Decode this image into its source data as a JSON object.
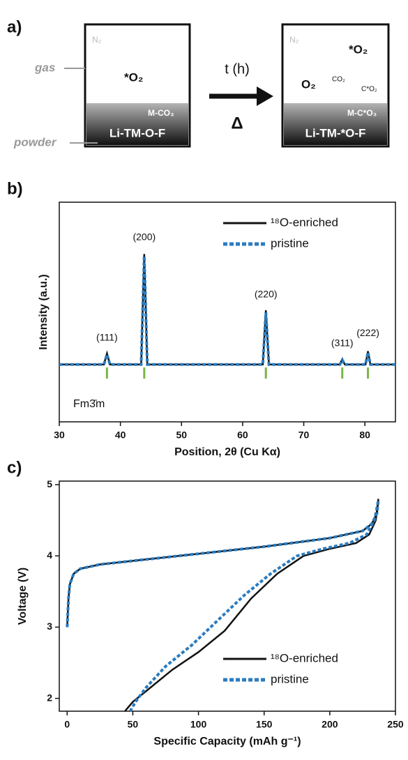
{
  "diagram": {
    "label": "a)",
    "gas": "gas",
    "powder": "powder",
    "left": {
      "atmosphere": "N₂",
      "gas": "*O₂",
      "carbonate": "M-CO₃",
      "oxide": "Li-TM-O-F"
    },
    "arrow_top": "t (h)",
    "arrow_bottom": "Δ",
    "right": {
      "atmosphere": "N₂",
      "gas1": "*O₂",
      "gas2": "O₂",
      "gas3": "CO₂",
      "gas4": "C*O₂",
      "carbonate": "M-C*O₃",
      "oxide": "Li-TM-*O-F"
    }
  },
  "chart_data": [
    {
      "type": "line",
      "label": "b)",
      "x_label": "Position, 2θ (Cu Kα)",
      "y_label": "Intensity (a.u.)",
      "xlim": [
        30,
        85
      ],
      "xticks": [
        30,
        40,
        50,
        60,
        70,
        80
      ],
      "ylim": [
        -0.52,
        1.47
      ],
      "series": [
        {
          "name": "¹⁸O-enriched",
          "color": "#111111",
          "dash": false,
          "x": [
            30,
            37.3,
            37.8,
            38.3,
            43.4,
            43.9,
            44.4,
            63.3,
            63.8,
            64.3,
            75.9,
            76.3,
            76.7,
            80.1,
            80.5,
            80.9,
            85
          ],
          "values": [
            0,
            0,
            0.1,
            0,
            0,
            1.0,
            0,
            0,
            0.49,
            0,
            0,
            0.05,
            0,
            0,
            0.12,
            0,
            0
          ]
        },
        {
          "name": "pristine",
          "color": "#2a7bc0",
          "dash": true,
          "x": [
            30,
            37.3,
            37.8,
            38.3,
            43.4,
            43.9,
            44.4,
            63.3,
            63.8,
            64.3,
            75.9,
            76.3,
            76.7,
            80.1,
            80.5,
            80.9,
            85
          ],
          "values": [
            0,
            0,
            0.09,
            0,
            0,
            0.98,
            0,
            0,
            0.47,
            0,
            0,
            0.04,
            0,
            0,
            0.11,
            0,
            0
          ]
        }
      ],
      "annotations": [
        {
          "text": "(111)",
          "x": 37.8,
          "y": 0.24
        },
        {
          "text": "(200)",
          "x": 43.9,
          "y": 1.15
        },
        {
          "text": "(220)",
          "x": 63.8,
          "y": 0.63
        },
        {
          "text": "(311)",
          "x": 76.3,
          "y": 0.19
        },
        {
          "text": "(222)",
          "x": 80.5,
          "y": 0.28
        }
      ],
      "reference_color": "#7ab648",
      "reference_positions": [
        37.8,
        43.9,
        63.8,
        76.3,
        80.5
      ],
      "phase": "Fm3̄m"
    },
    {
      "type": "line",
      "label": "c)",
      "x_label": "Specific Capacity (mAh g⁻¹)",
      "y_label": "Voltage (V)",
      "xlim": [
        -6,
        250
      ],
      "xticks": [
        0,
        50,
        100,
        150,
        200,
        250
      ],
      "ylim": [
        1.82,
        5.05
      ],
      "yticks": [
        2,
        3,
        4,
        5
      ],
      "series": [
        {
          "name": "¹⁸O-enriched",
          "color": "#111111",
          "dash": false,
          "x": [
            0,
            1,
            2,
            5,
            10,
            25,
            50,
            100,
            150,
            200,
            225,
            232,
            236,
            237,
            235,
            230,
            220,
            200,
            180,
            160,
            140,
            120,
            100,
            80,
            60,
            50,
            44
          ],
          "values": [
            3.0,
            3.4,
            3.6,
            3.75,
            3.82,
            3.88,
            3.93,
            4.03,
            4.13,
            4.25,
            4.35,
            4.45,
            4.6,
            4.8,
            4.5,
            4.3,
            4.18,
            4.1,
            4.0,
            3.75,
            3.4,
            2.95,
            2.65,
            2.4,
            2.1,
            1.95,
            1.82
          ]
        },
        {
          "name": "pristine",
          "color": "#2a7bc0",
          "dash": true,
          "x": [
            0,
            1,
            2,
            5,
            10,
            25,
            50,
            100,
            150,
            200,
            225,
            232,
            236,
            237,
            234,
            228,
            215,
            195,
            175,
            155,
            135,
            115,
            95,
            75,
            60,
            52,
            48
          ],
          "values": [
            3.0,
            3.4,
            3.6,
            3.75,
            3.82,
            3.88,
            3.93,
            4.03,
            4.13,
            4.25,
            4.35,
            4.45,
            4.6,
            4.78,
            4.5,
            4.3,
            4.18,
            4.1,
            4.0,
            3.75,
            3.45,
            3.1,
            2.75,
            2.45,
            2.15,
            1.95,
            1.82
          ]
        }
      ]
    }
  ]
}
